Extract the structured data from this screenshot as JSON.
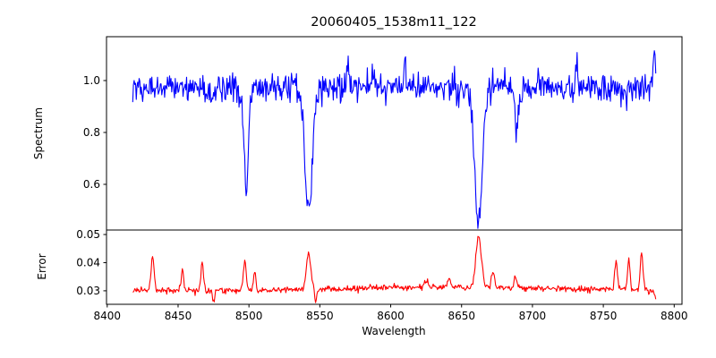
{
  "figure": {
    "background": "#ffffff",
    "axis_color": "#000000"
  },
  "chart_data": {
    "type": "line",
    "title": "20060405_1538m11_122",
    "xlabel": "Wavelength",
    "grid": false,
    "legend": "none",
    "x_data_range": [
      8418,
      8787
    ],
    "x_step": 0.5,
    "xlim": [
      8399.5,
      8805.5
    ],
    "xticks": [
      8400,
      8450,
      8500,
      8550,
      8600,
      8650,
      8700,
      8750,
      8800
    ],
    "xtick_labels": [
      "8400",
      "8450",
      "8500",
      "8550",
      "8600",
      "8650",
      "8700",
      "8750",
      "8800"
    ],
    "noise_seed": 20060405,
    "panels": [
      {
        "name": "spectrum",
        "ylabel": "Spectrum",
        "color": "#0000ff",
        "ylim": [
          0.424,
          1.169
        ],
        "yticks": [
          0.6,
          0.8,
          1.0
        ],
        "ytick_labels": [
          "0.6",
          "0.8",
          "1.0"
        ],
        "baseline": 0.973,
        "noise_sigma": 0.027,
        "clamp": [
          0.43,
          1.16
        ],
        "features": [
          {
            "center": 8498,
            "amplitude": -0.39,
            "sigma": 1.6,
            "note": "Ca II 8498 absorption, min ~0.60"
          },
          {
            "center": 8542,
            "amplitude": -0.47,
            "sigma": 2.6,
            "note": "Ca II 8542 absorption, min ~0.52"
          },
          {
            "center": 8662,
            "amplitude": -0.52,
            "sigma": 2.6,
            "note": "Ca II 8662 absorption, min ~0.45"
          },
          {
            "center": 8689,
            "amplitude": -0.17,
            "sigma": 1.2,
            "note": "narrow absorption to ~0.80"
          },
          {
            "center": 8570,
            "amplitude": 0.09,
            "sigma": 0.8,
            "note": "noise spike up ~1.09"
          },
          {
            "center": 8610,
            "amplitude": 0.09,
            "sigma": 0.8,
            "note": "noise spike up ~1.09"
          },
          {
            "center": 8731,
            "amplitude": 0.11,
            "sigma": 0.8,
            "note": "noise spike up ~1.11"
          },
          {
            "center": 8786,
            "amplitude": 0.15,
            "sigma": 0.9,
            "note": "end spike up ~1.14"
          }
        ]
      },
      {
        "name": "error",
        "ylabel": "Error",
        "color": "#ff0000",
        "ylim": [
          0.0252,
          0.0516
        ],
        "yticks": [
          0.03,
          0.04,
          0.05
        ],
        "ytick_labels": [
          "0.03",
          "0.04",
          "0.05"
        ],
        "baseline": 0.0302,
        "noise_sigma": 0.00055,
        "clamp": [
          0.0255,
          0.0512
        ],
        "features": [
          {
            "center": 8645,
            "amplitude": 0.0012,
            "sigma": 60,
            "note": "broad gentle rise mid-right"
          },
          {
            "center": 8432,
            "amplitude": 0.0122,
            "sigma": 1.0,
            "note": "spike to ~0.042"
          },
          {
            "center": 8453,
            "amplitude": 0.007,
            "sigma": 0.9,
            "note": "spike to ~0.037"
          },
          {
            "center": 8467,
            "amplitude": 0.01,
            "sigma": 0.9,
            "note": "spike to ~0.040"
          },
          {
            "center": 8475,
            "amplitude": -0.0045,
            "sigma": 0.7,
            "note": "down spike ~0.026"
          },
          {
            "center": 8497,
            "amplitude": 0.0105,
            "sigma": 1.0,
            "note": "spike to ~0.041"
          },
          {
            "center": 8504,
            "amplitude": 0.0062,
            "sigma": 0.8,
            "note": "spike to ~0.037"
          },
          {
            "center": 8542,
            "amplitude": 0.013,
            "sigma": 1.6,
            "note": "spike to ~0.044"
          },
          {
            "center": 8547,
            "amplitude": -0.0045,
            "sigma": 0.7,
            "note": "down spike ~0.026"
          },
          {
            "center": 8625,
            "amplitude": 0.0028,
            "sigma": 1.2,
            "note": "small bump"
          },
          {
            "center": 8641,
            "amplitude": 0.0032,
            "sigma": 1.0,
            "note": "small bump"
          },
          {
            "center": 8662,
            "amplitude": 0.0185,
            "sigma": 1.9,
            "note": "tallest spike to ~0.049"
          },
          {
            "center": 8672,
            "amplitude": 0.0055,
            "sigma": 1.0,
            "note": "shoulder spike"
          },
          {
            "center": 8688,
            "amplitude": 0.0042,
            "sigma": 0.9,
            "note": "small spike"
          },
          {
            "center": 8759,
            "amplitude": 0.0102,
            "sigma": 1.0,
            "note": "spike to ~0.041"
          },
          {
            "center": 8768,
            "amplitude": 0.0112,
            "sigma": 0.9,
            "note": "spike to ~0.042"
          },
          {
            "center": 8777,
            "amplitude": 0.0132,
            "sigma": 1.0,
            "note": "spike to ~0.044"
          },
          {
            "center": 8787,
            "amplitude": -0.003,
            "sigma": 0.8,
            "note": "end dip ~0.028"
          }
        ]
      }
    ]
  }
}
